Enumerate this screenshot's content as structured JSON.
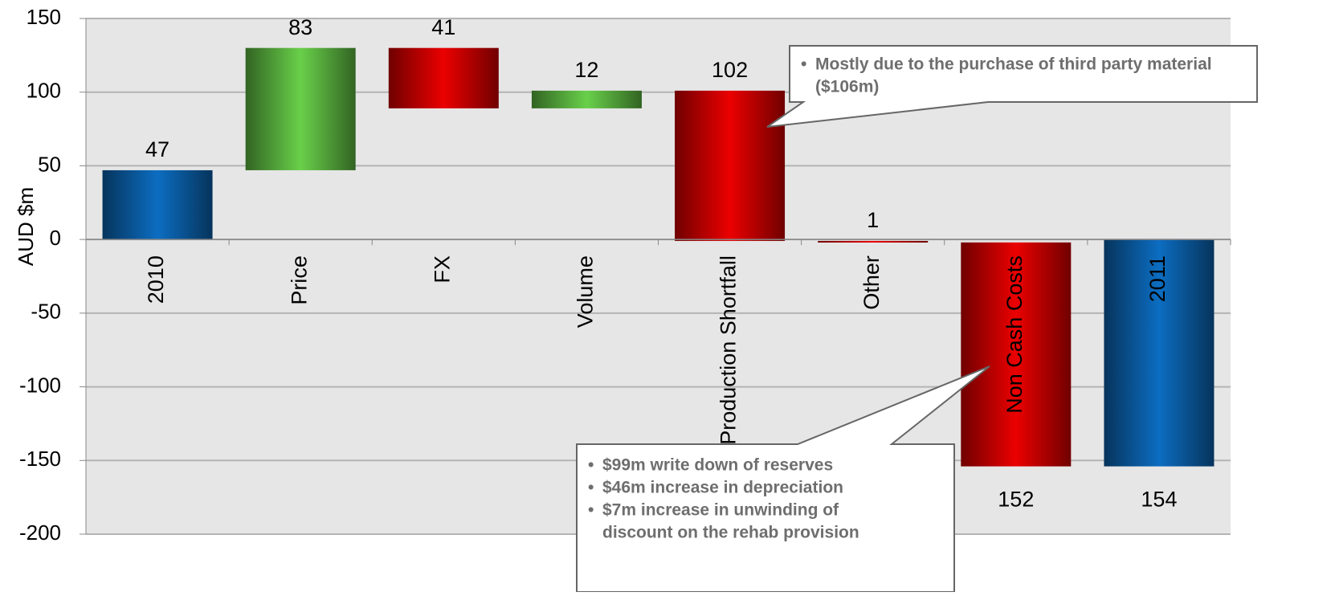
{
  "chart_data": {
    "type": "waterfall",
    "y_label": "AUD $m",
    "categories": [
      "2010",
      "Price",
      "FX",
      "Volume",
      "Production Shortfall",
      "Other",
      "Non Cash Costs",
      "2011"
    ],
    "values": [
      47,
      83,
      -41,
      12,
      -102,
      -1,
      -152,
      -154
    ],
    "value_labels": [
      "47",
      "83",
      "41",
      "12",
      "102",
      "1",
      "152",
      "154"
    ],
    "measure": [
      "total",
      "relative",
      "relative",
      "relative",
      "relative",
      "relative",
      "relative",
      "total"
    ],
    "colors": [
      "#0a5fa8",
      "#5bb540",
      "#cc0000",
      "#5bb540",
      "#cc0000",
      "#cc0000",
      "#cc0000",
      "#0a5fa8"
    ],
    "ylim": [
      -200,
      150
    ],
    "yticks": [
      -200,
      -150,
      -100,
      -50,
      0,
      50,
      100,
      150
    ],
    "grid": true,
    "annotations": [
      {
        "bullets": [
          [
            "Mostly due to the purchase of third party material",
            "($106m)"
          ]
        ]
      },
      {
        "bullets": [
          [
            "$99m write down of reserves"
          ],
          [
            "$46m increase in depreciation"
          ],
          [
            "$7m increase in unwinding of",
            "discount on the rehab provision"
          ]
        ]
      }
    ]
  }
}
